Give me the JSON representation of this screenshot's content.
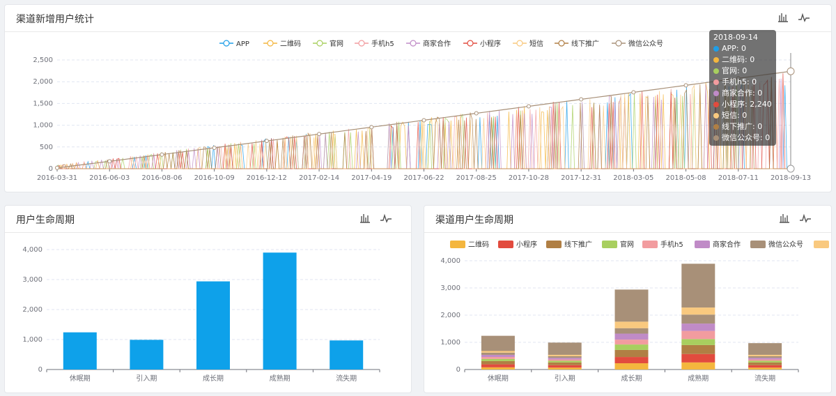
{
  "panels": {
    "top": {
      "title": "渠道新增用户统计"
    },
    "bottom_left": {
      "title": "用户生命周期"
    },
    "bottom_right": {
      "title": "渠道用户生命周期"
    }
  },
  "colors": {
    "APP": "#1e9ee8",
    "二维码": "#f4b63e",
    "官网": "#a8cf5f",
    "手机h5": "#f29c9f",
    "商家合作": "#c08bc7",
    "小程序": "#e24b3e",
    "短信": "#f9c97f",
    "线下推广": "#b07f44",
    "微信公众号": "#a89078",
    "bar": "#0ea1ea"
  },
  "tooltip": {
    "title": "2018-09-14",
    "rows": [
      {
        "label": "APP: 0",
        "color": "#1e9ee8"
      },
      {
        "label": "二维码: 0",
        "color": "#f4b63e"
      },
      {
        "label": "官网: 0",
        "color": "#a8cf5f"
      },
      {
        "label": "手机h5: 0",
        "color": "#f29c9f"
      },
      {
        "label": "商家合作: 0",
        "color": "#c08bc7"
      },
      {
        "label": "小程序: 2,240",
        "color": "#e24b3e"
      },
      {
        "label": "短信: 0",
        "color": "#f9c97f"
      },
      {
        "label": "线下推广: 0",
        "color": "#b07f44"
      },
      {
        "label": "微信公众号: 0",
        "color": "#a89078"
      }
    ]
  },
  "chart_data": [
    {
      "type": "line",
      "title": "渠道新增用户统计",
      "legend": [
        "APP",
        "二维码",
        "官网",
        "手机h5",
        "商家合作",
        "小程序",
        "短信",
        "线下推广",
        "微信公众号"
      ],
      "x_ticks": [
        "2016-03-31",
        "2016-06-03",
        "2016-08-06",
        "2016-10-09",
        "2016-12-12",
        "2017-02-14",
        "2017-04-19",
        "2017-06-22",
        "2017-08-25",
        "2017-10-28",
        "2017-12-31",
        "2018-03-05",
        "2018-05-08",
        "2018-07-11",
        "2018-09-13"
      ],
      "x_range": [
        "2016-03-31",
        "2018-09-14"
      ],
      "ylim": [
        0,
        2500
      ],
      "y_ticks": [
        0,
        500,
        1000,
        1500,
        2000,
        2500
      ],
      "grid": true,
      "legend_position": "top"
    },
    {
      "type": "bar",
      "title": "用户生命周期",
      "categories": [
        "休眠期",
        "引入期",
        "成长期",
        "成熟期",
        "流失期"
      ],
      "values": [
        1240,
        990,
        2940,
        3900,
        970
      ],
      "ylim": [
        0,
        4000
      ],
      "y_ticks": [
        0,
        1000,
        2000,
        3000,
        4000
      ],
      "grid": true
    },
    {
      "type": "bar",
      "title": "渠道用户生命周期",
      "stacked": true,
      "categories": [
        "休眠期",
        "引入期",
        "成长期",
        "成熟期",
        "流失期"
      ],
      "series": [
        {
          "name": "二维码",
          "values": [
            80,
            70,
            230,
            260,
            70
          ]
        },
        {
          "name": "小程序",
          "values": [
            110,
            90,
            230,
            310,
            90
          ]
        },
        {
          "name": "线下推广",
          "values": [
            120,
            100,
            260,
            330,
            100
          ]
        },
        {
          "name": "官网",
          "values": [
            80,
            60,
            200,
            220,
            60
          ]
        },
        {
          "name": "手机h5",
          "values": [
            70,
            50,
            180,
            300,
            50
          ]
        },
        {
          "name": "商家合作",
          "values": [
            80,
            60,
            220,
            270,
            60
          ]
        },
        {
          "name": "微信公众号",
          "values": [
            80,
            60,
            200,
            330,
            60
          ]
        },
        {
          "name": "短信",
          "values": [
            60,
            50,
            240,
            260,
            50
          ]
        },
        {
          "name": "",
          "values": [
            560,
            450,
            1180,
            1610,
            430
          ]
        }
      ],
      "legend": [
        "二维码",
        "小程序",
        "线下推广",
        "官网",
        "手机h5",
        "商家合作",
        "微信公众号",
        "短信"
      ],
      "ylim": [
        0,
        4000
      ],
      "y_ticks": [
        0,
        1000,
        2000,
        3000,
        4000
      ],
      "grid": true,
      "legend_position": "top"
    }
  ]
}
